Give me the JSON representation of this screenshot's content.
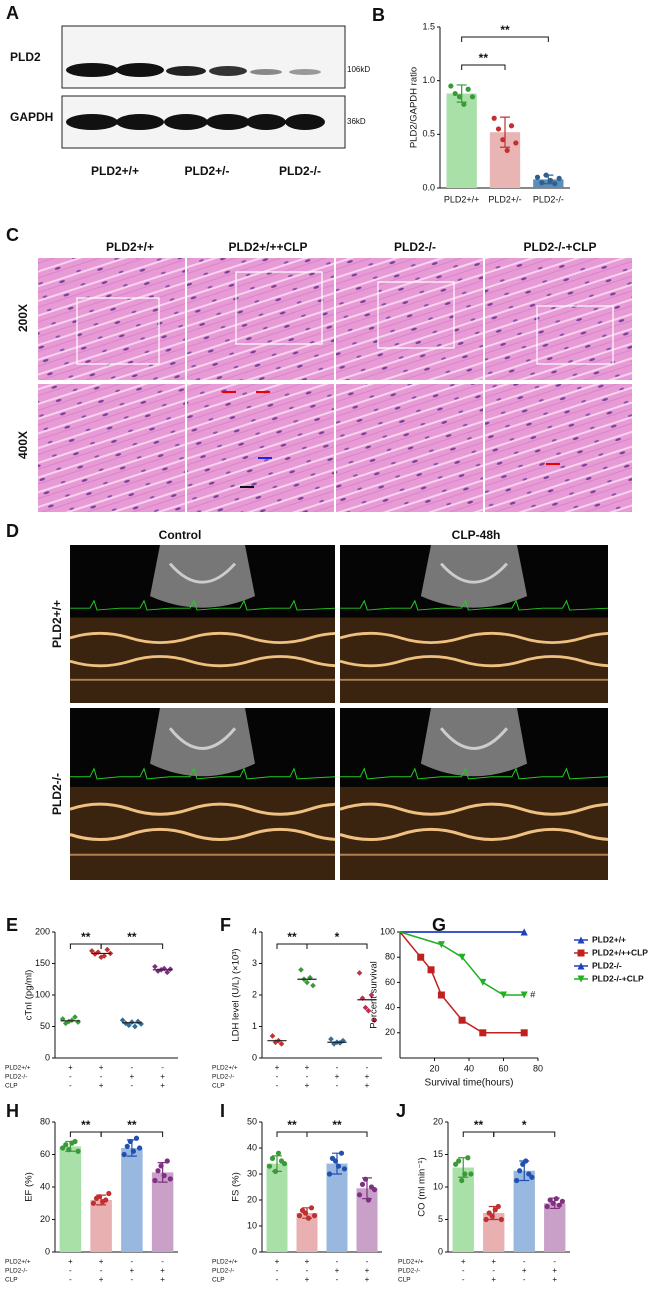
{
  "panel_a": {
    "label": "A",
    "blots": [
      "PLD2",
      "GAPDH"
    ],
    "sizes": [
      "106kD",
      "36kD"
    ],
    "lanes": [
      "PLD2+/+",
      "PLD2+/-",
      "PLD2-/-"
    ]
  },
  "panel_c": {
    "label": "C",
    "columns": [
      "PLD2+/+",
      "PLD2+/++CLP",
      "PLD2-/-",
      "PLD2-/-+CLP"
    ],
    "rows": [
      "200X",
      "400X"
    ]
  },
  "panel_d": {
    "label": "D",
    "columns": [
      "Control",
      "CLP-48h"
    ],
    "rows": [
      "PLD2+/+",
      "PLD2-/-"
    ]
  },
  "chart_data": [
    {
      "type": "bar",
      "label": "B",
      "ylabel": "PLD2/GAPDH ratio",
      "categories": [
        "PLD2+/+",
        "PLD2+/-",
        "PLD2-/-"
      ],
      "values": [
        0.88,
        0.52,
        0.08
      ],
      "errors": [
        0.08,
        0.14,
        0.04
      ],
      "colors": [
        "#a8e0a8",
        "#e8b4b4",
        "#5b8db8"
      ],
      "point_colors": [
        "#3a9a3a",
        "#c03030",
        "#2f5f8f"
      ],
      "points": [
        [
          0.95,
          0.88,
          0.85,
          0.78,
          0.92,
          0.85
        ],
        [
          0.65,
          0.55,
          0.45,
          0.35,
          0.58,
          0.42
        ],
        [
          0.1,
          0.05,
          0.12,
          0.07,
          0.04,
          0.09
        ]
      ],
      "ylim": [
        0,
        1.5
      ],
      "yticks": [
        {
          "value": 0,
          "label": "0.0"
        },
        0.5,
        {
          "value": 1,
          "label": "1.0"
        },
        1.5
      ],
      "annotations": [
        "**",
        "**"
      ]
    },
    {
      "type": "dot",
      "label": "E",
      "ylabel": "cTnI (pg/ml)",
      "colors": [
        "#3a9a3a",
        "#c03030",
        "#2f6f9f",
        "#803080"
      ],
      "points": [
        [
          62,
          55,
          58,
          60,
          65,
          57
        ],
        [
          170,
          165,
          168,
          160,
          162,
          172,
          166
        ],
        [
          60,
          55,
          52,
          57,
          50,
          58,
          54
        ],
        [
          145,
          138,
          140,
          142,
          136,
          141
        ]
      ],
      "means": [
        59,
        166,
        56,
        140
      ],
      "ylim": [
        0,
        200
      ],
      "yticks": [
        0,
        50,
        100,
        150,
        200
      ],
      "annotations": [
        "**",
        "**"
      ],
      "conditions": {
        "rows": [
          "PLD2+/+",
          "PLD2-/-",
          "CLP"
        ],
        "cells": [
          [
            "+",
            "+",
            "-",
            "-"
          ],
          [
            "-",
            "-",
            "+",
            "+"
          ],
          [
            "-",
            "+",
            "-",
            "+"
          ]
        ]
      }
    },
    {
      "type": "dot",
      "label": "F",
      "ylabel": "LDH level (U/L) (×10³)",
      "colors": [
        "#c03030",
        "#3a9a3a",
        "#2f6f9f",
        "#c03050"
      ],
      "points": [
        [
          0.7,
          0.5,
          0.55,
          0.45
        ],
        [
          2.8,
          2.5,
          2.4,
          2.55,
          2.3
        ],
        [
          0.6,
          0.45,
          0.5,
          0.48,
          0.55
        ],
        [
          2.7,
          1.9,
          1.6,
          1.5,
          2.0,
          1.2
        ]
      ],
      "means": [
        0.55,
        2.5,
        0.5,
        1.85
      ],
      "ylim": [
        0,
        4
      ],
      "yticks": [
        0,
        1,
        2,
        3,
        4
      ],
      "annotations": [
        "**",
        "*"
      ],
      "conditions": {
        "rows": [
          "PLD2+/+",
          "PLD2-/-",
          "CLP"
        ],
        "cells": [
          [
            "+",
            "+",
            "-",
            "-"
          ],
          [
            "-",
            "-",
            "+",
            "+"
          ],
          [
            "-",
            "+",
            "-",
            "+"
          ]
        ]
      }
    },
    {
      "type": "line",
      "label": "G",
      "xlabel": "Survival time(hours)",
      "ylabel": "Percent survival",
      "xlim": [
        0,
        80
      ],
      "ylim": [
        0,
        100
      ],
      "xticks": [
        20,
        40,
        60,
        80
      ],
      "yticks": [
        20,
        40,
        60,
        80,
        100
      ],
      "annotations": [
        "#"
      ],
      "series": [
        {
          "name": "PLD2+/+",
          "color": "#2040c0",
          "marker": "triangle",
          "x": [
            0,
            72
          ],
          "values": [
            100,
            100
          ]
        },
        {
          "name": "PLD2+/++CLP",
          "color": "#c02020",
          "marker": "square",
          "x": [
            0,
            12,
            18,
            24,
            36,
            48,
            72
          ],
          "values": [
            100,
            80,
            70,
            50,
            30,
            20,
            20
          ]
        },
        {
          "name": "PLD2-/-",
          "color": "#2040c0",
          "marker": "triangle",
          "x": [
            0,
            72
          ],
          "values": [
            100,
            100
          ]
        },
        {
          "name": "PLD2-/-+CLP",
          "color": "#20b020",
          "marker": "triangle-down",
          "x": [
            0,
            24,
            36,
            48,
            60,
            72
          ],
          "values": [
            100,
            90,
            80,
            60,
            50,
            50
          ]
        }
      ]
    },
    {
      "type": "bar",
      "label": "H",
      "ylabel": "EF (%)",
      "values": [
        65,
        32,
        64,
        49
      ],
      "errors": [
        3,
        3,
        5,
        6
      ],
      "colors": [
        "#a8e0a8",
        "#e8b0b0",
        "#98b8e0",
        "#c8a0c8"
      ],
      "point_colors": [
        "#3a9a3a",
        "#c03030",
        "#2050b0",
        "#803080"
      ],
      "points": [
        [
          64,
          66,
          63,
          67,
          68,
          62
        ],
        [
          30,
          33,
          34,
          31,
          32,
          36
        ],
        [
          60,
          65,
          68,
          62,
          70,
          64
        ],
        [
          44,
          50,
          53,
          47,
          56,
          45
        ]
      ],
      "ylim": [
        0,
        80
      ],
      "yticks": [
        0,
        20,
        40,
        60,
        80
      ],
      "annotations": [
        "**",
        "**"
      ],
      "conditions": {
        "rows": [
          "PLD2+/+",
          "PLD2-/-",
          "CLP"
        ],
        "cells": [
          [
            "+",
            "+",
            "-",
            "-"
          ],
          [
            "-",
            "-",
            "+",
            "+"
          ],
          [
            "-",
            "+",
            "-",
            "+"
          ]
        ]
      }
    },
    {
      "type": "bar",
      "label": "I",
      "ylabel": "FS (%)",
      "values": [
        34,
        15,
        34,
        24.5
      ],
      "errors": [
        3,
        2,
        4,
        4
      ],
      "colors": [
        "#a8e0a8",
        "#e8b0b0",
        "#98b8e0",
        "#c8a0c8"
      ],
      "point_colors": [
        "#3a9a3a",
        "#c03030",
        "#2050b0",
        "#803080"
      ],
      "points": [
        [
          33,
          36,
          31,
          38,
          35,
          34
        ],
        [
          14,
          16,
          15,
          13,
          17,
          14
        ],
        [
          30,
          36,
          35,
          33,
          38,
          32
        ],
        [
          22,
          26,
          28,
          20,
          25,
          24
        ]
      ],
      "ylim": [
        0,
        50
      ],
      "yticks": [
        0,
        10,
        20,
        30,
        40,
        50
      ],
      "annotations": [
        "**",
        "**"
      ],
      "conditions": {
        "rows": [
          "PLD2+/+",
          "PLD2-/-",
          "CLP"
        ],
        "cells": [
          [
            "+",
            "+",
            "-",
            "-"
          ],
          [
            "-",
            "-",
            "+",
            "+"
          ],
          [
            "-",
            "+",
            "-",
            "+"
          ]
        ]
      }
    },
    {
      "type": "bar",
      "label": "J",
      "ylabel": "CO (ml min⁻¹)",
      "values": [
        13,
        6,
        12.5,
        7.5
      ],
      "errors": [
        1.5,
        1,
        1.5,
        0.8
      ],
      "colors": [
        "#a8e0a8",
        "#e8b0b0",
        "#98b8e0",
        "#c8a0c8"
      ],
      "point_colors": [
        "#3a9a3a",
        "#c03030",
        "#2050b0",
        "#803080"
      ],
      "points": [
        [
          13.5,
          14,
          11,
          12,
          14.5,
          12
        ],
        [
          5,
          6,
          5.5,
          6.5,
          7,
          5
        ],
        [
          11,
          12.5,
          13.5,
          14,
          12,
          11.5
        ],
        [
          7,
          8,
          7.5,
          8.2,
          7.2,
          7.8
        ]
      ],
      "ylim": [
        0,
        20
      ],
      "yticks": [
        0,
        5,
        10,
        15,
        20
      ],
      "annotations": [
        "**",
        "*"
      ],
      "conditions": {
        "rows": [
          "PLD2+/+",
          "PLD2-/-",
          "CLP"
        ],
        "cells": [
          [
            "+",
            "+",
            "-",
            "-"
          ],
          [
            "-",
            "-",
            "+",
            "+"
          ],
          [
            "-",
            "+",
            "-",
            "+"
          ]
        ]
      }
    }
  ]
}
